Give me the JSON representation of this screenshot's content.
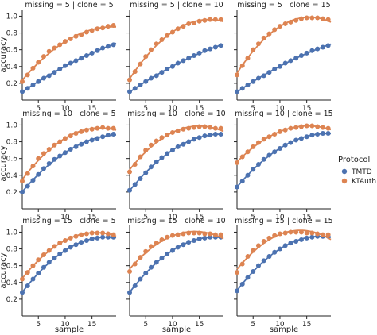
{
  "chart_data": {
    "type": "scatter",
    "layout": "facet-grid",
    "row_var": "missing",
    "col_var": "clone",
    "xlabel": "sample",
    "ylabel": "accuracy",
    "xlim": [
      2,
      19.5
    ],
    "ylim": [
      0.0,
      1.08
    ],
    "xticks": [
      5,
      10,
      15
    ],
    "xtick_labels": [
      "5",
      "10",
      "15"
    ],
    "yticks": [
      0.2,
      0.4,
      0.6,
      0.8,
      1.0
    ],
    "ytick_labels": [
      "0.2",
      "0.4",
      "0.6",
      "0.8",
      "1.0"
    ],
    "grid": false,
    "legend": {
      "title": "Protocol",
      "placement": "right",
      "entries": [
        {
          "name": "TMTD",
          "color": "#4c72b0"
        },
        {
          "name": "KTAuth",
          "color": "#dd8452"
        }
      ]
    },
    "x": [
      2,
      3,
      4,
      5,
      6,
      7,
      8,
      9,
      10,
      11,
      12,
      13,
      14,
      15,
      16,
      17,
      18,
      19
    ],
    "panels": [
      {
        "title": "missing = 5 | clone = 5",
        "series": [
          {
            "name": "TMTD",
            "values": [
              0.1,
              0.14,
              0.18,
              0.22,
              0.26,
              0.29,
              0.33,
              0.37,
              0.41,
              0.44,
              0.47,
              0.5,
              0.53,
              0.56,
              0.59,
              0.62,
              0.64,
              0.66
            ]
          },
          {
            "name": "KTAuth",
            "values": [
              0.22,
              0.3,
              0.38,
              0.45,
              0.52,
              0.58,
              0.62,
              0.66,
              0.7,
              0.73,
              0.76,
              0.78,
              0.81,
              0.83,
              0.85,
              0.86,
              0.88,
              0.89
            ]
          }
        ]
      },
      {
        "title": "missing = 5 | clone = 10",
        "series": [
          {
            "name": "TMTD",
            "values": [
              0.1,
              0.14,
              0.18,
              0.22,
              0.26,
              0.29,
              0.33,
              0.37,
              0.4,
              0.44,
              0.47,
              0.5,
              0.53,
              0.56,
              0.59,
              0.61,
              0.63,
              0.65
            ]
          },
          {
            "name": "KTAuth",
            "values": [
              0.24,
              0.34,
              0.43,
              0.52,
              0.6,
              0.67,
              0.72,
              0.77,
              0.81,
              0.85,
              0.88,
              0.91,
              0.92,
              0.94,
              0.95,
              0.96,
              0.96,
              0.96
            ]
          }
        ]
      },
      {
        "title": "missing = 5 | clone = 15",
        "series": [
          {
            "name": "TMTD",
            "values": [
              0.1,
              0.14,
              0.18,
              0.22,
              0.26,
              0.29,
              0.33,
              0.37,
              0.4,
              0.44,
              0.47,
              0.5,
              0.53,
              0.56,
              0.59,
              0.61,
              0.63,
              0.65
            ]
          },
          {
            "name": "KTAuth",
            "values": [
              0.3,
              0.41,
              0.5,
              0.6,
              0.67,
              0.74,
              0.79,
              0.84,
              0.88,
              0.91,
              0.93,
              0.95,
              0.97,
              0.98,
              0.98,
              0.98,
              0.97,
              0.96
            ]
          }
        ]
      },
      {
        "title": "missing = 10 | clone = 5",
        "series": [
          {
            "name": "TMTD",
            "values": [
              0.2,
              0.27,
              0.34,
              0.41,
              0.48,
              0.54,
              0.59,
              0.63,
              0.67,
              0.71,
              0.74,
              0.77,
              0.8,
              0.82,
              0.84,
              0.86,
              0.88,
              0.89
            ]
          },
          {
            "name": "KTAuth",
            "values": [
              0.33,
              0.42,
              0.51,
              0.6,
              0.66,
              0.71,
              0.76,
              0.8,
              0.84,
              0.87,
              0.9,
              0.92,
              0.94,
              0.95,
              0.96,
              0.97,
              0.96,
              0.96
            ]
          }
        ]
      },
      {
        "title": "missing = 10 | clone = 10",
        "series": [
          {
            "name": "TMTD",
            "values": [
              0.22,
              0.29,
              0.36,
              0.43,
              0.5,
              0.56,
              0.61,
              0.66,
              0.7,
              0.74,
              0.77,
              0.8,
              0.83,
              0.85,
              0.87,
              0.88,
              0.89,
              0.89
            ]
          },
          {
            "name": "KTAuth",
            "values": [
              0.44,
              0.53,
              0.62,
              0.7,
              0.76,
              0.81,
              0.85,
              0.88,
              0.91,
              0.93,
              0.95,
              0.96,
              0.97,
              0.98,
              0.98,
              0.97,
              0.96,
              0.96
            ]
          }
        ]
      },
      {
        "title": "missing = 10 | clone = 15",
        "series": [
          {
            "name": "TMTD",
            "values": [
              0.26,
              0.33,
              0.4,
              0.47,
              0.53,
              0.59,
              0.64,
              0.68,
              0.72,
              0.76,
              0.79,
              0.82,
              0.84,
              0.86,
              0.88,
              0.89,
              0.9,
              0.9
            ]
          },
          {
            "name": "KTAuth",
            "values": [
              0.55,
              0.62,
              0.68,
              0.74,
              0.79,
              0.83,
              0.86,
              0.89,
              0.92,
              0.94,
              0.96,
              0.97,
              0.98,
              0.99,
              0.99,
              0.98,
              0.97,
              0.96
            ]
          }
        ]
      },
      {
        "title": "missing = 15 | clone = 5",
        "series": [
          {
            "name": "TMTD",
            "values": [
              0.28,
              0.36,
              0.44,
              0.51,
              0.58,
              0.64,
              0.69,
              0.74,
              0.78,
              0.82,
              0.85,
              0.88,
              0.9,
              0.92,
              0.93,
              0.94,
              0.94,
              0.94
            ]
          },
          {
            "name": "KTAuth",
            "values": [
              0.44,
              0.52,
              0.6,
              0.67,
              0.73,
              0.78,
              0.83,
              0.87,
              0.9,
              0.93,
              0.95,
              0.97,
              0.98,
              0.99,
              0.99,
              0.99,
              0.98,
              0.97
            ]
          }
        ]
      },
      {
        "title": "missing = 15 | clone = 10",
        "series": [
          {
            "name": "TMTD",
            "values": [
              0.28,
              0.36,
              0.44,
              0.51,
              0.58,
              0.64,
              0.69,
              0.74,
              0.78,
              0.82,
              0.85,
              0.88,
              0.9,
              0.92,
              0.93,
              0.94,
              0.94,
              0.94
            ]
          },
          {
            "name": "KTAuth",
            "values": [
              0.53,
              0.62,
              0.7,
              0.77,
              0.83,
              0.87,
              0.91,
              0.94,
              0.96,
              0.97,
              0.98,
              0.99,
              0.99,
              0.99,
              0.98,
              0.98,
              0.97,
              0.97
            ]
          }
        ]
      },
      {
        "title": "missing = 15 | clone = 15",
        "series": [
          {
            "name": "TMTD",
            "values": [
              0.3,
              0.38,
              0.46,
              0.53,
              0.6,
              0.66,
              0.71,
              0.76,
              0.8,
              0.84,
              0.87,
              0.89,
              0.91,
              0.93,
              0.94,
              0.95,
              0.95,
              0.95
            ]
          },
          {
            "name": "KTAuth",
            "values": [
              0.52,
              0.62,
              0.71,
              0.78,
              0.84,
              0.89,
              0.93,
              0.96,
              0.98,
              0.99,
              1.0,
              1.0,
              1.0,
              0.99,
              0.99,
              0.98,
              0.97,
              0.97
            ]
          }
        ]
      }
    ]
  }
}
